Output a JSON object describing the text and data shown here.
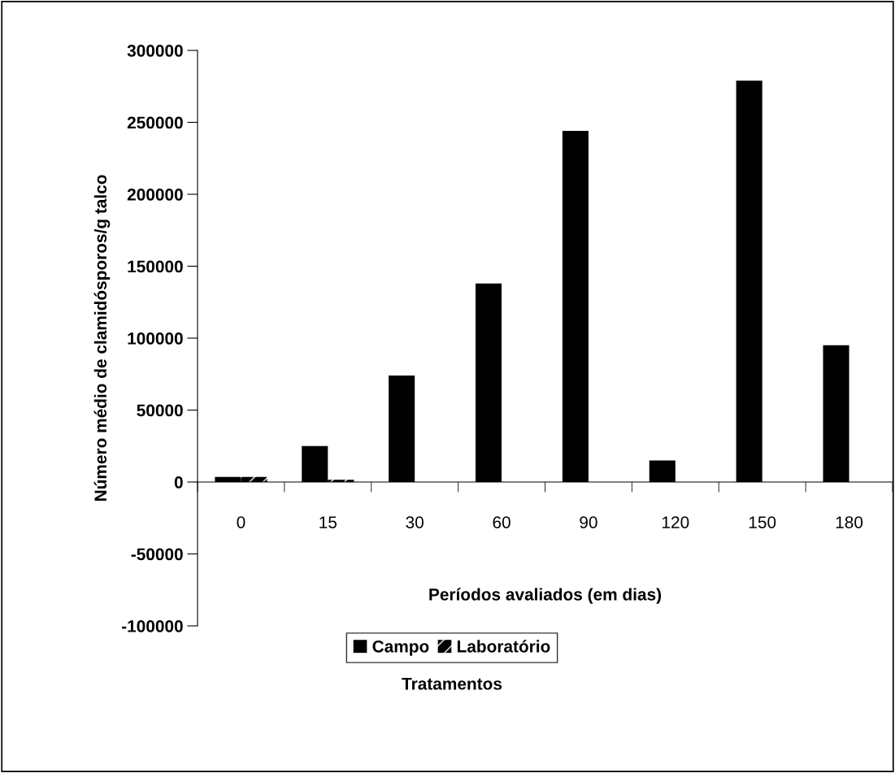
{
  "chart_data": {
    "type": "bar",
    "xlabel": "Períodos avaliados (em dias)",
    "ylabel": "Número médio de clamidósporos/g talco",
    "categories": [
      "0",
      "15",
      "30",
      "60",
      "90",
      "120",
      "150",
      "180"
    ],
    "series": [
      {
        "name": "Campo",
        "color": "#000000",
        "values": [
          3500,
          25000,
          74000,
          138000,
          244000,
          15000,
          279000,
          95000
        ]
      },
      {
        "name": "Laboratório",
        "color": "#000000",
        "values": [
          3500,
          1500,
          0,
          0,
          0,
          0,
          0,
          0
        ]
      }
    ],
    "ylim": [
      -100000,
      300000
    ],
    "yticks": [
      {
        "value": -100000,
        "label": "-100000"
      },
      {
        "value": -50000,
        "label": "-50000"
      },
      0,
      50000,
      100000,
      150000,
      200000,
      250000,
      300000
    ],
    "grid": false,
    "legend": "bottom",
    "annotations": [
      "Tratamentos"
    ]
  }
}
